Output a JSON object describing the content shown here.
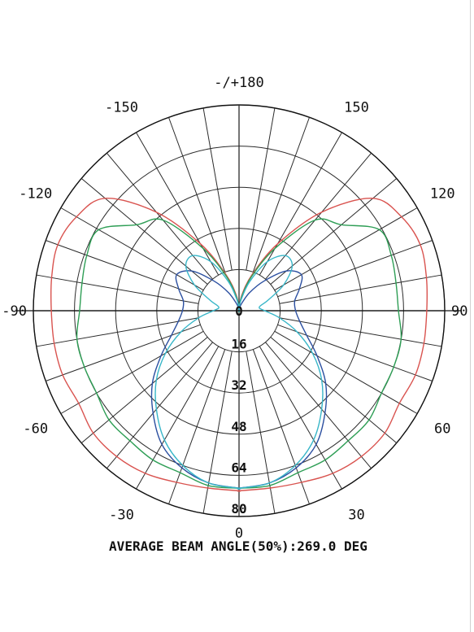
{
  "chart_data": {
    "type": "polar-line",
    "title": "",
    "footer": "AVERAGE BEAM ANGLE(50%):269.0 DEG",
    "angle_tick_labels": [
      {
        "angle": 180,
        "text": "-/+180"
      },
      {
        "angle": -150,
        "text": "-150"
      },
      {
        "angle": 150,
        "text": "150"
      },
      {
        "angle": -120,
        "text": "-120"
      },
      {
        "angle": 120,
        "text": "120"
      },
      {
        "angle": -90,
        "text": "-90"
      },
      {
        "angle": 90,
        "text": "90"
      },
      {
        "angle": -60,
        "text": "-60"
      },
      {
        "angle": 60,
        "text": "60"
      },
      {
        "angle": -30,
        "text": "-30"
      },
      {
        "angle": 30,
        "text": "30"
      },
      {
        "angle": 0,
        "text": "0"
      }
    ],
    "radial_tick_labels": [
      "0",
      "16",
      "32",
      "48",
      "64",
      "80"
    ],
    "radial_ticks": [
      0,
      16,
      32,
      48,
      64,
      80
    ],
    "radial_max": 80,
    "angle_step_deg": 10,
    "grid": true,
    "series": [
      {
        "color": "#d9534f",
        "angles": [
          0,
          10,
          20,
          30,
          40,
          50,
          60,
          70,
          80,
          90,
          100,
          110,
          120,
          130,
          140,
          150,
          160,
          170,
          180
        ],
        "values": [
          70,
          70,
          71,
          73,
          74,
          74,
          72,
          73,
          73,
          73,
          74,
          75,
          73,
          68,
          50,
          30,
          15,
          6,
          0
        ]
      },
      {
        "color": "#2e9e55",
        "angles": [
          0,
          10,
          20,
          30,
          40,
          50,
          60,
          70,
          80,
          90,
          100,
          110,
          120,
          130,
          140,
          150,
          160,
          170,
          180
        ],
        "values": [
          69,
          69,
          67,
          67,
          66,
          66,
          64,
          64,
          64,
          62,
          62,
          63,
          63,
          52,
          46,
          28,
          14,
          5,
          0
        ]
      },
      {
        "color": "#2b4fa0",
        "angles": [
          0,
          10,
          20,
          30,
          40,
          50,
          60,
          70,
          80,
          90,
          100,
          110,
          120,
          130,
          140,
          150,
          160,
          170,
          180
        ],
        "values": [
          69,
          68,
          65,
          60,
          52,
          44,
          35,
          28,
          24,
          22,
          22,
          25,
          28,
          24,
          15,
          8,
          3,
          1,
          0
        ]
      },
      {
        "color": "#38b6c8",
        "angles": [
          0,
          10,
          20,
          30,
          40,
          50,
          60,
          70,
          80,
          90,
          100,
          110,
          120,
          130,
          140,
          150,
          160,
          170,
          180
        ],
        "values": [
          69,
          68,
          64,
          58,
          50,
          42,
          33,
          24,
          16,
          10,
          8,
          12,
          20,
          27,
          28,
          22,
          12,
          4,
          0
        ]
      }
    ]
  }
}
